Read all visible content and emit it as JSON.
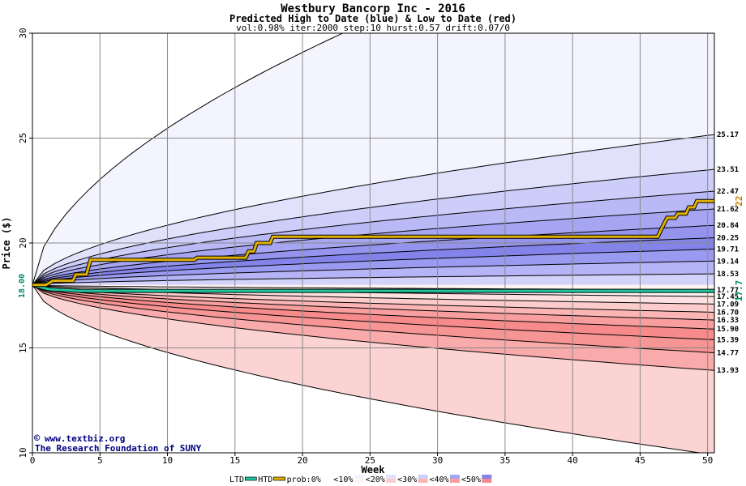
{
  "chart_data": {
    "type": "area",
    "title": "Westbury Bancorp Inc - 2016",
    "subtitle": "Predicted High to Date (blue) &  Low to Date (red)",
    "params": "vol:0.98% iter:2000 step:10 hurst:0.57 drift:0.07/0",
    "xlabel": "Week",
    "ylabel": "Price ($)",
    "xlim": [
      0,
      50.5
    ],
    "ylim": [
      10,
      30
    ],
    "x_ticks": [
      0,
      5,
      10,
      15,
      20,
      25,
      30,
      35,
      40,
      45,
      50
    ],
    "y_ticks": [
      10,
      15,
      20,
      25,
      30
    ],
    "grid": true,
    "start_price": 18.0,
    "start_label": "18.00",
    "upper_bands": [
      {
        "label": "25.17",
        "end": 25.17
      },
      {
        "label": "23.51",
        "end": 23.51
      },
      {
        "label": "22.47",
        "end": 22.47
      },
      {
        "label": "21.62",
        "end": 21.62
      },
      {
        "label": "20.84",
        "end": 20.84
      },
      {
        "label": "20.25",
        "end": 20.25
      },
      {
        "label": "19.71",
        "end": 19.71
      },
      {
        "label": "19.14",
        "end": 19.14
      },
      {
        "label": "18.53",
        "end": 18.53
      },
      {
        "label": "17.77",
        "end": 17.77
      }
    ],
    "lower_bands": [
      {
        "label": "17.45",
        "end": 17.45
      },
      {
        "label": "17.09",
        "end": 17.09
      },
      {
        "label": "16.70",
        "end": 16.7
      },
      {
        "label": "16.33",
        "end": 16.33
      },
      {
        "label": "15.90",
        "end": 15.9
      },
      {
        "label": "15.39",
        "end": 15.39
      },
      {
        "label": "14.77",
        "end": 14.77
      },
      {
        "label": "13.93",
        "end": 13.93
      }
    ],
    "upper_outer_end": 36.8,
    "lower_outer_end": 9.9,
    "htd_series": {
      "name": "HTD",
      "points": [
        [
          0,
          18.0
        ],
        [
          1.0,
          18.0
        ],
        [
          1.5,
          18.2
        ],
        [
          3,
          18.2
        ],
        [
          3.2,
          18.5
        ],
        [
          4,
          18.5
        ],
        [
          4.3,
          19.2
        ],
        [
          12,
          19.2
        ],
        [
          12.2,
          19.3
        ],
        [
          15.8,
          19.3
        ],
        [
          16,
          19.6
        ],
        [
          16.4,
          19.6
        ],
        [
          16.6,
          20.0
        ],
        [
          17.6,
          20.0
        ],
        [
          17.8,
          20.3
        ],
        [
          46.3,
          20.3
        ],
        [
          46.6,
          20.7
        ],
        [
          47,
          21.2
        ],
        [
          47.6,
          21.2
        ],
        [
          47.8,
          21.4
        ],
        [
          48.4,
          21.4
        ],
        [
          48.6,
          21.7
        ],
        [
          49,
          21.7
        ],
        [
          49.2,
          22.0
        ],
        [
          50.5,
          22.0
        ]
      ]
    },
    "ltd_series": {
      "name": "LTD",
      "points": [
        [
          0,
          18.0
        ],
        [
          0.6,
          17.9
        ],
        [
          1.2,
          17.8
        ],
        [
          2.5,
          17.75
        ],
        [
          3.5,
          17.72
        ],
        [
          50.5,
          17.72
        ]
      ]
    },
    "htd_end_label": "22",
    "ltd_end_label": "17.7",
    "colors": {
      "upper_bands": [
        "#f4f4ff",
        "#e1e1fc",
        "#cdcdfa",
        "#b9b9f6",
        "#a5a5f2",
        "#9494ee",
        "#8383ea",
        "#9a9af0",
        "#b4b4f6",
        "#d2d2fb",
        "#f2f2ff"
      ],
      "lower_bands": [
        "#fff2f2",
        "#fde0e0",
        "#fccccc",
        "#fbb5b5",
        "#f99e9e",
        "#f78a8a",
        "#f79494",
        "#f9aaaa",
        "#fcd3d3"
      ],
      "htd": "#e0b000",
      "ltd": "#20c8a0",
      "htd_label": "#c08000",
      "ltd_label": "#008a6a",
      "title": "#000000",
      "credit": "#000080"
    },
    "legend": {
      "items": [
        "LTD",
        "HTD",
        "prob:0%",
        "<10%",
        "<20%",
        "<30%",
        "<40%",
        "<50%"
      ]
    }
  },
  "credits": {
    "line1": "www.textbiz.org",
    "line2": "The Research Foundation of SUNY"
  }
}
